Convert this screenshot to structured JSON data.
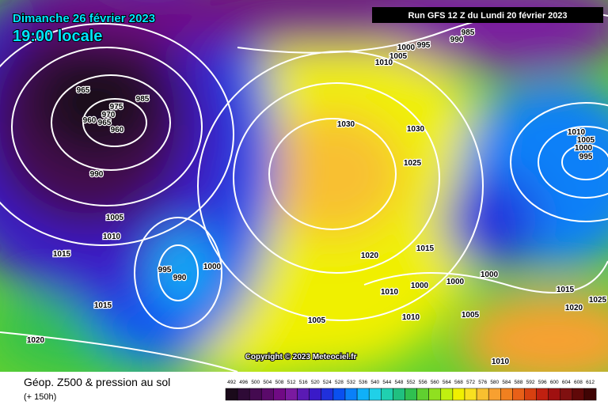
{
  "header": {
    "title": "Dimanche 26 février 2023",
    "time": "19:00 locale",
    "run": "Run GFS 12 Z du Lundi 20 février 2023"
  },
  "footer": {
    "title": "Géop. Z500 & pression au sol",
    "lead": "(+ 150h)",
    "copyright": "Copyright © 2023 Meteociel.fr"
  },
  "scale": {
    "values": [
      492,
      496,
      500,
      504,
      508,
      512,
      516,
      520,
      524,
      528,
      532,
      536,
      540,
      544,
      548,
      552,
      556,
      560,
      564,
      568,
      572,
      576,
      580,
      584,
      588,
      592,
      596,
      600,
      604,
      608,
      612
    ],
    "colors": [
      "#1a0a1a",
      "#2e0a36",
      "#440a50",
      "#5a0a6a",
      "#700a84",
      "#7a1aa0",
      "#5a1ab4",
      "#3a1ac8",
      "#2030dc",
      "#0a50f0",
      "#0a80f8",
      "#10b0f8",
      "#20d0e8",
      "#20d0b0",
      "#20c080",
      "#30c050",
      "#60d030",
      "#90e020",
      "#c0f010",
      "#f0f000",
      "#f8e020",
      "#f8c030",
      "#f8a030",
      "#f08020",
      "#e86018",
      "#d84010",
      "#c02010",
      "#a01010",
      "#801010",
      "#600808",
      "#400404"
    ]
  },
  "isobar_labels": [
    "965",
    "975",
    "970",
    "985",
    "960",
    "965",
    "960",
    "990",
    "1005",
    "1010",
    "1015",
    "995",
    "990",
    "1000",
    "1015",
    "1020",
    "1030",
    "1030",
    "1025",
    "1020",
    "1015",
    "1010",
    "1000",
    "1000",
    "1000",
    "1005",
    "1010",
    "1005",
    "1015",
    "1020",
    "1025",
    "1010",
    "1010",
    "1005",
    "1000",
    "995",
    "1000",
    "995",
    "1005",
    "1010",
    "985",
    "990"
  ]
}
